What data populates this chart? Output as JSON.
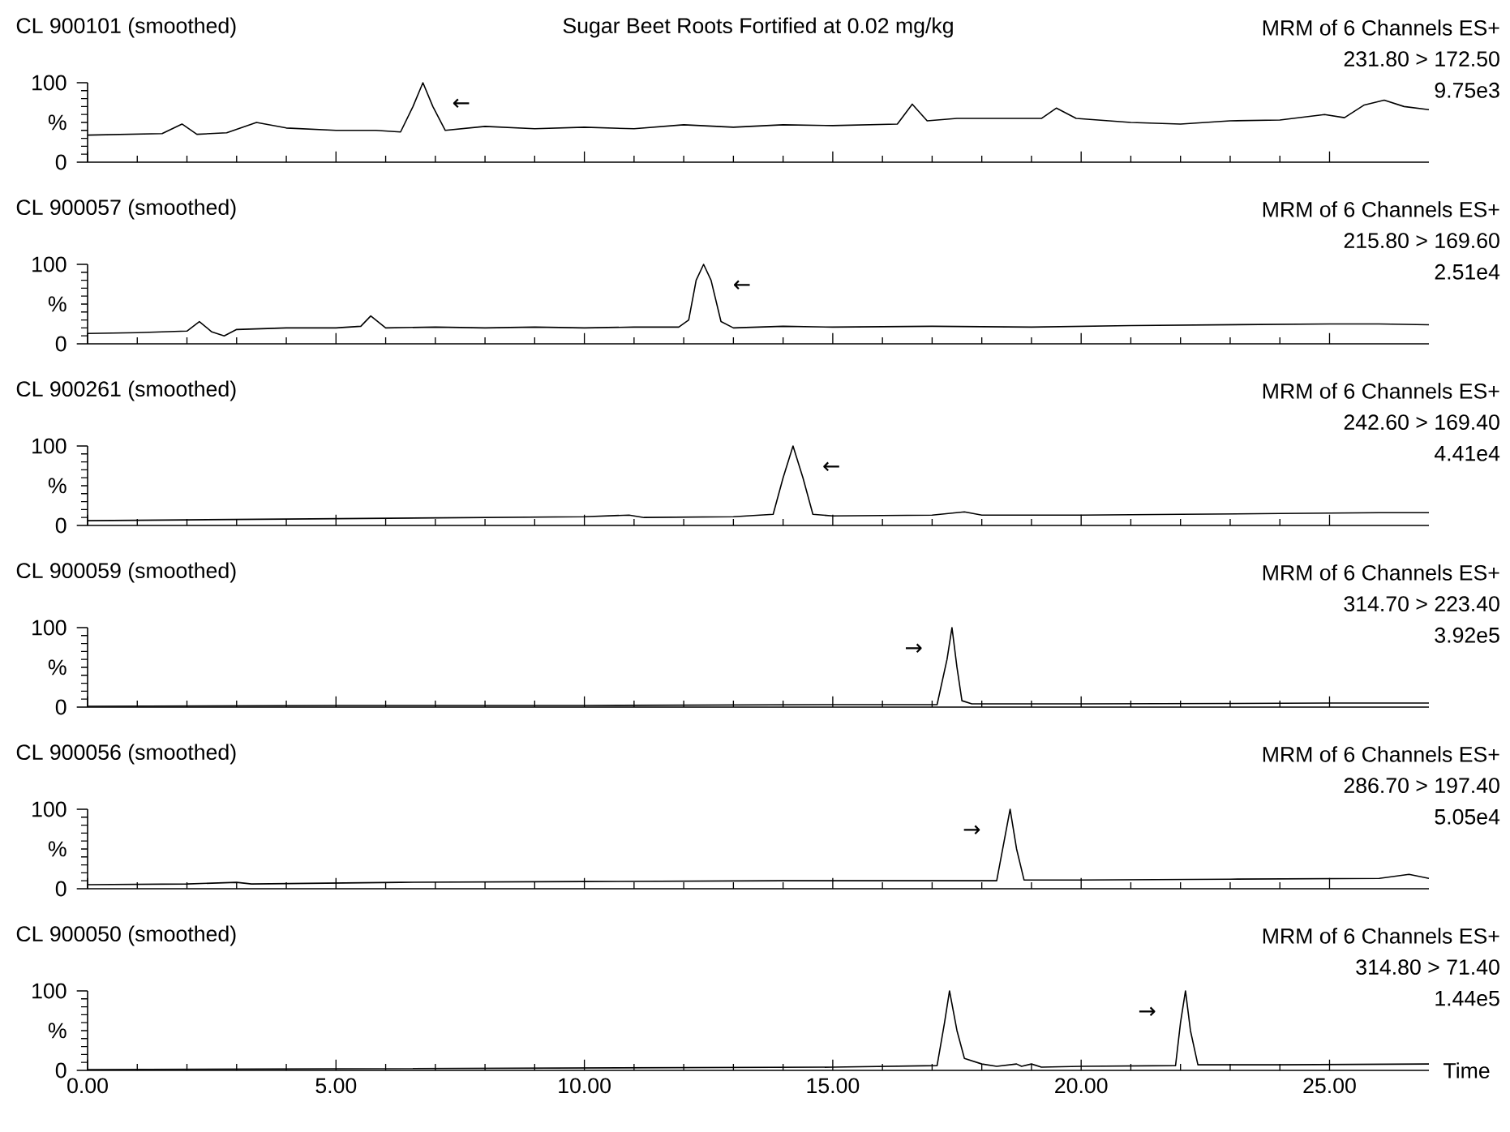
{
  "chart_data": [
    {
      "type": "line",
      "title": "Sugar Beet Roots Fortified at 0.02 mg/kg",
      "subtitle": "CL 900101 (smoothed)",
      "annotations": [
        "MRM of 6 Channels ES+",
        "231.80 > 172.50",
        "9.75e3",
        {
          "text": "←",
          "x": 6.75,
          "y": 100
        }
      ],
      "x": [
        0,
        1.5,
        1.9,
        2.2,
        2.8,
        3.4,
        4.0,
        5.0,
        5.8,
        6.3,
        6.55,
        6.75,
        6.95,
        7.2,
        8,
        9,
        10,
        11,
        12,
        13,
        14,
        15,
        16.3,
        16.6,
        16.9,
        17.5,
        18.5,
        19.2,
        19.5,
        19.9,
        21,
        22,
        23,
        24,
        24.9,
        25.3,
        25.7,
        26.1,
        26.5,
        27
      ],
      "series": [
        {
          "color": "#000000",
          "values": [
            34,
            36,
            48,
            35,
            37,
            50,
            43,
            40,
            40,
            38,
            70,
            100,
            70,
            40,
            45,
            42,
            44,
            42,
            47,
            44,
            47,
            46,
            48,
            73,
            52,
            55,
            55,
            55,
            68,
            55,
            50,
            48,
            52,
            53,
            60,
            56,
            72,
            78,
            70,
            66
          ]
        }
      ],
      "xlim": [
        0,
        27
      ],
      "ylim": [
        0,
        100
      ],
      "xticks": [
        0,
        5,
        10,
        15,
        20,
        25
      ],
      "ylabel": "%",
      "yticks": [
        0,
        100
      ],
      "tick_labels": "y"
    },
    {
      "type": "line",
      "title": "CL 900057 (smoothed)",
      "annotations": [
        "MRM of 6 Channels ES+",
        "215.80 > 169.60",
        "2.51e4",
        {
          "text": "←",
          "x": 12.4,
          "y": 100
        }
      ],
      "x": [
        0,
        1,
        2,
        2.25,
        2.5,
        2.75,
        3,
        4,
        5,
        5.5,
        5.7,
        6,
        7,
        8,
        9,
        10,
        11,
        11.9,
        12.1,
        12.25,
        12.4,
        12.55,
        12.75,
        13,
        14,
        15,
        17,
        19,
        21,
        23,
        25,
        26,
        27
      ],
      "series": [
        {
          "color": "#000000",
          "values": [
            13,
            14,
            16,
            28,
            15,
            10,
            18,
            20,
            20,
            22,
            35,
            20,
            21,
            20,
            21,
            20,
            21,
            21,
            30,
            80,
            100,
            80,
            28,
            20,
            22,
            21,
            22,
            21,
            23,
            24,
            25,
            25,
            24
          ]
        }
      ],
      "xlim": [
        0,
        27
      ],
      "ylim": [
        0,
        100
      ],
      "xticks": [
        0,
        5,
        10,
        15,
        20,
        25
      ],
      "ylabel": "%",
      "yticks": [
        0,
        100
      ],
      "tick_labels": "y"
    },
    {
      "type": "line",
      "title": "CL 900261 (smoothed)",
      "annotations": [
        "MRM of 6 Channels ES+",
        "242.60 > 169.40",
        "4.41e4",
        {
          "text": "←",
          "x": 14.2,
          "y": 100
        }
      ],
      "x": [
        0,
        2,
        4,
        6,
        8,
        10,
        10.9,
        11.2,
        13,
        13.8,
        14.0,
        14.2,
        14.4,
        14.6,
        15,
        17,
        17.65,
        18,
        20,
        22,
        24,
        26,
        27
      ],
      "series": [
        {
          "color": "#000000",
          "values": [
            6,
            7,
            8,
            9,
            10,
            11,
            13,
            10,
            11,
            14,
            60,
            100,
            60,
            14,
            12,
            13,
            17,
            13,
            13,
            14,
            15,
            16,
            16
          ]
        }
      ],
      "xlim": [
        0,
        27
      ],
      "ylim": [
        0,
        100
      ],
      "xticks": [
        0,
        5,
        10,
        15,
        20,
        25
      ],
      "ylabel": "%",
      "yticks": [
        0,
        100
      ],
      "tick_labels": "y"
    },
    {
      "type": "line",
      "title": "CL 900059 (smoothed)",
      "annotations": [
        "MRM of 6 Channels ES+",
        "314.70 > 223.40",
        "3.92e5",
        {
          "text": "→",
          "x": 17.4,
          "y": 100
        }
      ],
      "x": [
        0,
        5,
        10,
        15,
        17.1,
        17.3,
        17.4,
        17.5,
        17.6,
        17.8,
        20,
        25,
        27
      ],
      "series": [
        {
          "color": "#000000",
          "values": [
            1,
            2,
            2,
            3,
            3,
            60,
            100,
            50,
            8,
            4,
            4,
            5,
            5
          ]
        }
      ],
      "xlim": [
        0,
        27
      ],
      "ylim": [
        0,
        100
      ],
      "xticks": [
        0,
        5,
        10,
        15,
        20,
        25
      ],
      "ylabel": "%",
      "yticks": [
        0,
        100
      ],
      "tick_labels": "y"
    },
    {
      "type": "line",
      "title": "CL 900056 (smoothed)",
      "annotations": [
        "MRM of 6 Channels ES+",
        "286.70 > 197.40",
        "5.05e4",
        {
          "text": "→",
          "x": 18.57,
          "y": 100
        }
      ],
      "x": [
        0,
        2,
        3,
        3.3,
        6.3,
        10,
        14,
        18.3,
        18.45,
        18.57,
        18.7,
        18.85,
        20,
        23,
        26,
        26.6,
        27
      ],
      "series": [
        {
          "color": "#000000",
          "values": [
            5,
            6,
            8,
            6,
            8,
            9,
            10,
            10,
            60,
            100,
            50,
            11,
            11,
            12,
            13,
            18,
            13
          ]
        }
      ],
      "xlim": [
        0,
        27
      ],
      "ylim": [
        0,
        100
      ],
      "xticks": [
        0,
        5,
        10,
        15,
        20,
        25
      ],
      "ylabel": "%",
      "yticks": [
        0,
        100
      ],
      "tick_labels": "y"
    },
    {
      "type": "line",
      "title": "CL 900050 (smoothed)",
      "xlabel": "Time",
      "annotations": [
        "MRM of 6 Channels ES+",
        "314.80 > 71.40",
        "1.44e5",
        {
          "text": "→",
          "x": 22.1,
          "y": 100
        }
      ],
      "x": [
        0,
        5,
        10,
        15,
        17.1,
        17.25,
        17.35,
        17.5,
        17.65,
        18,
        18.3,
        18.7,
        18.8,
        19.0,
        19.2,
        20,
        21.9,
        22.0,
        22.1,
        22.2,
        22.35,
        24,
        27
      ],
      "series": [
        {
          "color": "#000000",
          "values": [
            1,
            2,
            3,
            4,
            6,
            60,
            100,
            50,
            15,
            8,
            5,
            8,
            5,
            8,
            4,
            5,
            6,
            60,
            100,
            50,
            7,
            7,
            8
          ]
        }
      ],
      "xlim": [
        0,
        27
      ],
      "ylim": [
        0,
        100
      ],
      "xticks": [
        {
          "value": 0,
          "label": "0.00"
        },
        {
          "value": 5,
          "label": "5.00"
        },
        {
          "value": 10,
          "label": "10.00"
        },
        {
          "value": 15,
          "label": "15.00"
        },
        {
          "value": 20,
          "label": "20.00"
        },
        {
          "value": 25,
          "label": "25.00"
        }
      ],
      "ylabel": "%",
      "yticks": [
        0,
        100
      ]
    }
  ]
}
